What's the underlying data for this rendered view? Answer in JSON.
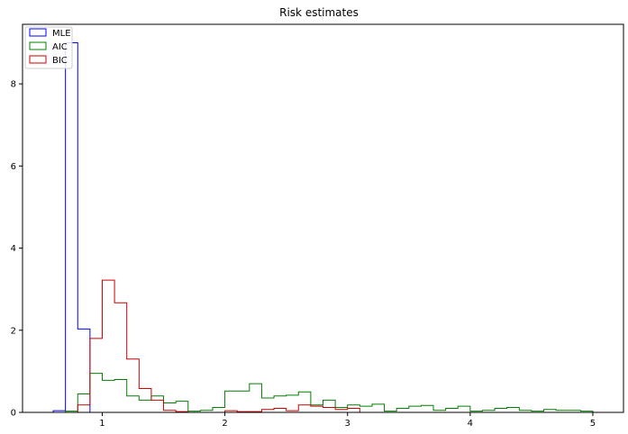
{
  "chart_data": {
    "type": "histogram",
    "title": "Risk estimates",
    "xlabel": "",
    "ylabel": "",
    "xlim": [
      0.35,
      5.25
    ],
    "ylim": [
      0,
      9.45
    ],
    "xticks": [
      1,
      2,
      3,
      4,
      5
    ],
    "yticks": [
      0,
      2,
      4,
      6,
      8
    ],
    "legend_position": "top-left",
    "series": [
      {
        "name": "MLE",
        "color": "#0000ff",
        "edges": [
          0.6,
          0.7,
          0.8,
          0.9
        ],
        "values": [
          0.04,
          9.0,
          2.03
        ]
      },
      {
        "name": "AIC",
        "color": "#008000",
        "edges": [
          0.7,
          0.8,
          0.9,
          1.0,
          1.1,
          1.2,
          1.3,
          1.4,
          1.5,
          1.6,
          1.7,
          1.8,
          1.9,
          2.0,
          2.1,
          2.2,
          2.3,
          2.4,
          2.5,
          2.6,
          2.7,
          2.8,
          2.9,
          3.0,
          3.1,
          3.2,
          3.3,
          3.4,
          3.5,
          3.6,
          3.7,
          3.8,
          3.9,
          4.0,
          4.1,
          4.2,
          4.3,
          4.4,
          4.5,
          4.6,
          4.7,
          4.8,
          4.9,
          5.0
        ],
        "values": [
          0.03,
          0.45,
          0.95,
          0.78,
          0.8,
          0.4,
          0.3,
          0.4,
          0.23,
          0.27,
          0.03,
          0.05,
          0.12,
          0.52,
          0.52,
          0.7,
          0.35,
          0.4,
          0.42,
          0.5,
          0.18,
          0.3,
          0.12,
          0.18,
          0.15,
          0.2,
          0.03,
          0.1,
          0.15,
          0.17,
          0.05,
          0.1,
          0.15,
          0.03,
          0.05,
          0.1,
          0.12,
          0.05,
          0.03,
          0.07,
          0.05,
          0.05,
          0.03
        ]
      },
      {
        "name": "BIC",
        "color": "#cc0000",
        "edges": [
          0.7,
          0.8,
          0.9,
          1.0,
          1.1,
          1.2,
          1.3,
          1.4,
          1.5,
          1.6,
          1.7,
          1.8,
          1.9,
          2.0,
          2.1,
          2.2,
          2.3,
          2.4,
          2.5,
          2.6,
          2.7,
          2.8,
          2.9,
          3.0,
          3.1
        ],
        "values": [
          0.0,
          0.18,
          1.8,
          3.22,
          2.67,
          1.3,
          0.58,
          0.3,
          0.05,
          0.02,
          0.0,
          0.0,
          0.0,
          0.04,
          0.02,
          0.02,
          0.07,
          0.1,
          0.04,
          0.18,
          0.15,
          0.12,
          0.07,
          0.1
        ]
      }
    ]
  }
}
